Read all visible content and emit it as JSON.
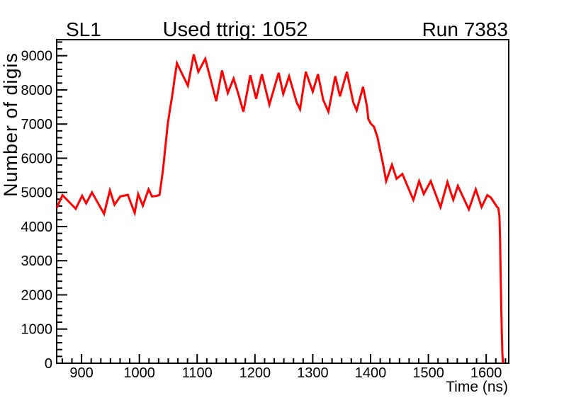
{
  "chart_data": {
    "type": "line",
    "title": "Used ttrig: 1052",
    "corner_labels": {
      "left": "SL1",
      "right": "Run 7383"
    },
    "xlabel": "Time (ns)",
    "ylabel": "Number of digis",
    "xlim": [
      857,
      1639
    ],
    "ylim": [
      0,
      9470
    ],
    "x_major_ticks": [
      900,
      1000,
      1100,
      1200,
      1300,
      1400,
      1500,
      1600
    ],
    "x_minor_divisions": 6,
    "y_major_ticks": [
      0,
      1000,
      2000,
      3000,
      4000,
      5000,
      6000,
      7000,
      8000,
      9000
    ],
    "y_minor_divisions": 5,
    "grid": false,
    "legend": null,
    "background": "#ffffff",
    "frame_color": "#000000",
    "series": [
      {
        "color": "#ff0000",
        "points": [
          [
            857,
            4540
          ],
          [
            867,
            4920
          ],
          [
            890,
            4520
          ],
          [
            901,
            4900
          ],
          [
            908,
            4680
          ],
          [
            918,
            5000
          ],
          [
            939,
            4370
          ],
          [
            949,
            5060
          ],
          [
            957,
            4640
          ],
          [
            967,
            4880
          ],
          [
            980,
            4930
          ],
          [
            992,
            4400
          ],
          [
            998,
            4950
          ],
          [
            1006,
            4610
          ],
          [
            1016,
            5090
          ],
          [
            1022,
            4880
          ],
          [
            1031,
            4900
          ],
          [
            1035,
            4930
          ],
          [
            1041,
            5670
          ],
          [
            1045,
            6330
          ],
          [
            1049,
            6980
          ],
          [
            1053,
            7430
          ],
          [
            1057,
            7850
          ],
          [
            1061,
            8330
          ],
          [
            1065,
            8780
          ],
          [
            1084,
            8120
          ],
          [
            1094,
            9040
          ],
          [
            1102,
            8530
          ],
          [
            1114,
            8910
          ],
          [
            1133,
            7670
          ],
          [
            1143,
            8570
          ],
          [
            1153,
            7910
          ],
          [
            1163,
            8330
          ],
          [
            1170,
            7950
          ],
          [
            1180,
            7360
          ],
          [
            1192,
            8430
          ],
          [
            1202,
            7740
          ],
          [
            1212,
            8460
          ],
          [
            1225,
            7570
          ],
          [
            1241,
            8500
          ],
          [
            1249,
            7880
          ],
          [
            1259,
            8400
          ],
          [
            1272,
            7640
          ],
          [
            1278,
            7430
          ],
          [
            1288,
            8530
          ],
          [
            1300,
            7950
          ],
          [
            1309,
            8460
          ],
          [
            1318,
            7710
          ],
          [
            1327,
            7360
          ],
          [
            1339,
            8400
          ],
          [
            1347,
            7810
          ],
          [
            1359,
            8530
          ],
          [
            1370,
            7640
          ],
          [
            1376,
            7400
          ],
          [
            1387,
            8090
          ],
          [
            1394,
            7500
          ],
          [
            1396,
            7160
          ],
          [
            1400,
            7020
          ],
          [
            1406,
            6920
          ],
          [
            1412,
            6610
          ],
          [
            1417,
            6190
          ],
          [
            1421,
            5880
          ],
          [
            1427,
            5330
          ],
          [
            1437,
            5810
          ],
          [
            1445,
            5400
          ],
          [
            1455,
            5540
          ],
          [
            1474,
            4780
          ],
          [
            1484,
            5330
          ],
          [
            1492,
            4950
          ],
          [
            1504,
            5330
          ],
          [
            1521,
            4570
          ],
          [
            1533,
            5300
          ],
          [
            1543,
            4780
          ],
          [
            1551,
            5190
          ],
          [
            1570,
            4500
          ],
          [
            1582,
            5090
          ],
          [
            1592,
            4570
          ],
          [
            1602,
            4920
          ],
          [
            1608,
            4850
          ],
          [
            1619,
            4570
          ],
          [
            1621,
            4540
          ],
          [
            1623,
            4300
          ],
          [
            1624,
            3600
          ],
          [
            1625,
            2600
          ],
          [
            1626,
            1700
          ],
          [
            1627,
            900
          ],
          [
            1628,
            300
          ],
          [
            1629,
            0
          ]
        ]
      }
    ]
  }
}
